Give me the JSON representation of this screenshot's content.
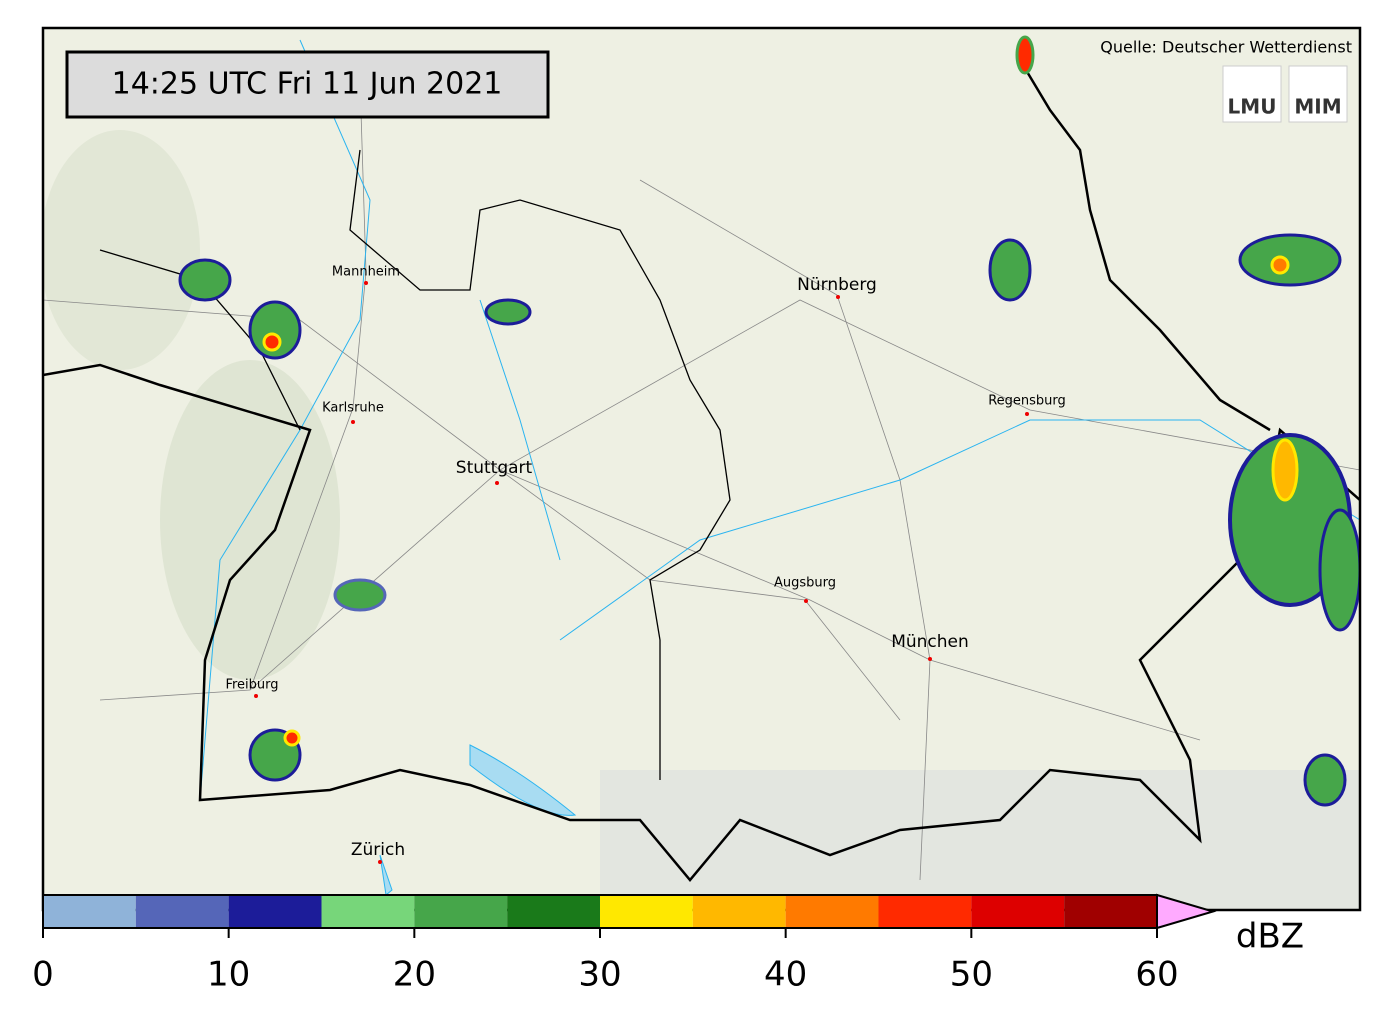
{
  "timestamp": "14:25 UTC  Fri 11 Jun 2021",
  "source": "Quelle: Deutscher Wetterdienst",
  "logos": [
    "LMU",
    "MIM"
  ],
  "cities": [
    "Mannheim",
    "Nürnberg",
    "Karlsruhe",
    "Regensburg",
    "Stuttgart",
    "Augsburg",
    "München",
    "Freiburg",
    "Zürich"
  ],
  "colorbar": {
    "unit": "dBZ",
    "bounds": [
      0,
      5,
      10,
      15,
      20,
      25,
      30,
      35,
      40,
      45,
      50,
      55,
      60
    ],
    "colors": [
      "#8fb3d9",
      "#5566b8",
      "#1c1c99",
      "#77d67a",
      "#46a64a",
      "#1a7a1a",
      "#ffe800",
      "#ffb800",
      "#ff7a00",
      "#ff2a00",
      "#dd0000",
      "#a00000"
    ],
    "extend_color": "#ffaaff",
    "ticks": [
      0,
      10,
      20,
      30,
      40,
      50,
      60
    ]
  }
}
